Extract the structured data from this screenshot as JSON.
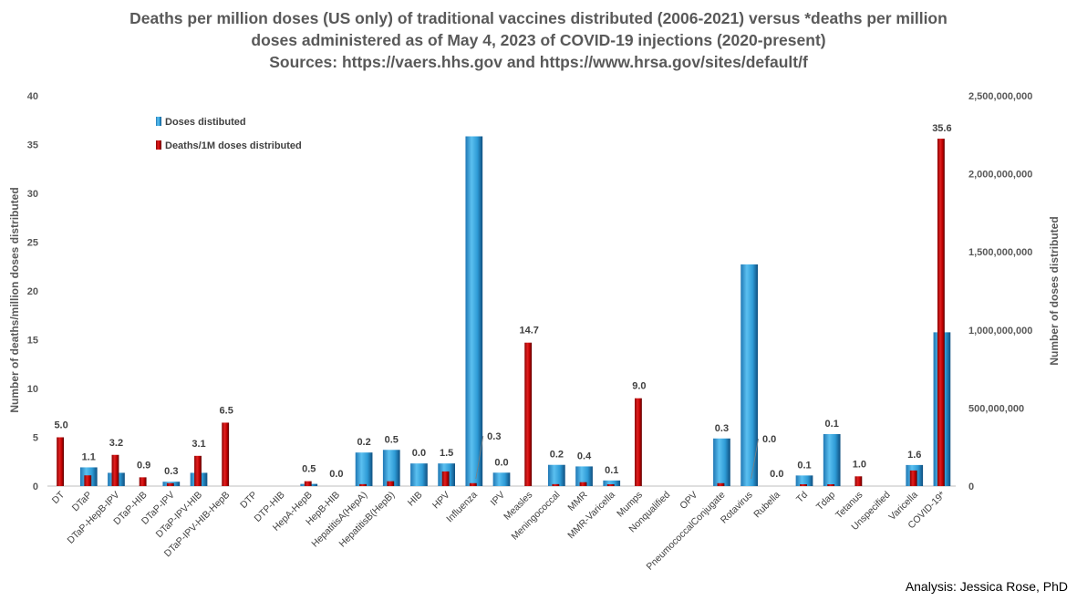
{
  "chart_data": {
    "type": "bar",
    "title": [
      "Deaths per million doses (US only) of traditional vaccines distributed (2006-2021) versus *deaths per million",
      "doses administered as of May 4, 2023 of COVID-19 injections (2020-present)",
      "Sources: https://vaers.hhs.gov and https://www.hrsa.gov/sites/default/f"
    ],
    "ylabel": "Number of deaths/million doses distributed",
    "ylabel_right": "Number of doses distributed",
    "ylim": [
      0,
      40
    ],
    "ylim_right": [
      0,
      2500000000
    ],
    "yticks": [
      "0",
      "5",
      "10",
      "15",
      "20",
      "25",
      "30",
      "35",
      "40"
    ],
    "yticks_right": [
      "0",
      "500,000,000",
      "1,000,000,000",
      "1,500,000,000",
      "2,000,000,000",
      "2,500,000,000"
    ],
    "categories": [
      "DT",
      "DTaP",
      "DTaP-HepB-IPV",
      "DTaP-HIB",
      "DTaP-IPV",
      "DTaP-IPV-HIB",
      "DTaP-IPV-HIB-HepB",
      "DTP",
      "DTP-HIB",
      "HepA-HepB",
      "HepB-HIB",
      "HepatitisA(HepA)",
      "HepatitisB(HepB)",
      "HIB",
      "HPV",
      "Influenza",
      "IPV",
      "Measles",
      "Meningococcal",
      "MMR",
      "MMR-Varicella",
      "Mumps",
      "Nonqualified",
      "OPV",
      "PneumococcalConjugate",
      "Rotavirus",
      "Rubella",
      "Td",
      "Tdap",
      "Tetanus",
      "Unspecified",
      "Varicella",
      "COVID-19*"
    ],
    "series": [
      {
        "name": "Doses distibuted",
        "axis": "right",
        "color": "#2e9bd6",
        "values": [
          0,
          120000000,
          85000000,
          0,
          28000000,
          85000000,
          0,
          0,
          0,
          14000000,
          0,
          215000000,
          232000000,
          145000000,
          145000000,
          2240000000,
          86000000,
          0,
          136000000,
          126000000,
          36000000,
          0,
          0,
          0,
          305000000,
          1420000000,
          0,
          68000000,
          333000000,
          0,
          0,
          135000000,
          985000000
        ]
      },
      {
        "name": "Deaths/1M doses distributed",
        "axis": "left",
        "color": "#c00000",
        "values": [
          5.0,
          1.1,
          3.2,
          0.9,
          0.3,
          3.1,
          6.5,
          0,
          0,
          0.5,
          0.0,
          0.2,
          0.5,
          0.0,
          1.5,
          0.3,
          0.0,
          14.7,
          0.2,
          0.4,
          0.1,
          9.0,
          0,
          0,
          0.3,
          0.0,
          0.0,
          0.1,
          0.1,
          1.0,
          0,
          1.6,
          35.6
        ]
      }
    ],
    "data_labels": [
      "5.0",
      "1.1",
      "3.2",
      "0.9",
      "0.3",
      "3.1",
      "6.5",
      "",
      "",
      "0.5",
      "0.0",
      "0.2",
      "0.5",
      "0.0",
      "1.5",
      "0.3",
      "0.0",
      "14.7",
      "0.2",
      "0.4",
      "0.1",
      "9.0",
      "",
      "",
      "0.3",
      "0.0",
      "0.0",
      "0.1",
      "0.1",
      "1.0",
      "",
      "1.6",
      "35.6"
    ],
    "legend": [
      "Doses distibuted",
      "Deaths/1M doses distributed"
    ],
    "legend_position": "top-left",
    "grid": false
  },
  "credit": "Analysis: Jessica Rose, PhD"
}
